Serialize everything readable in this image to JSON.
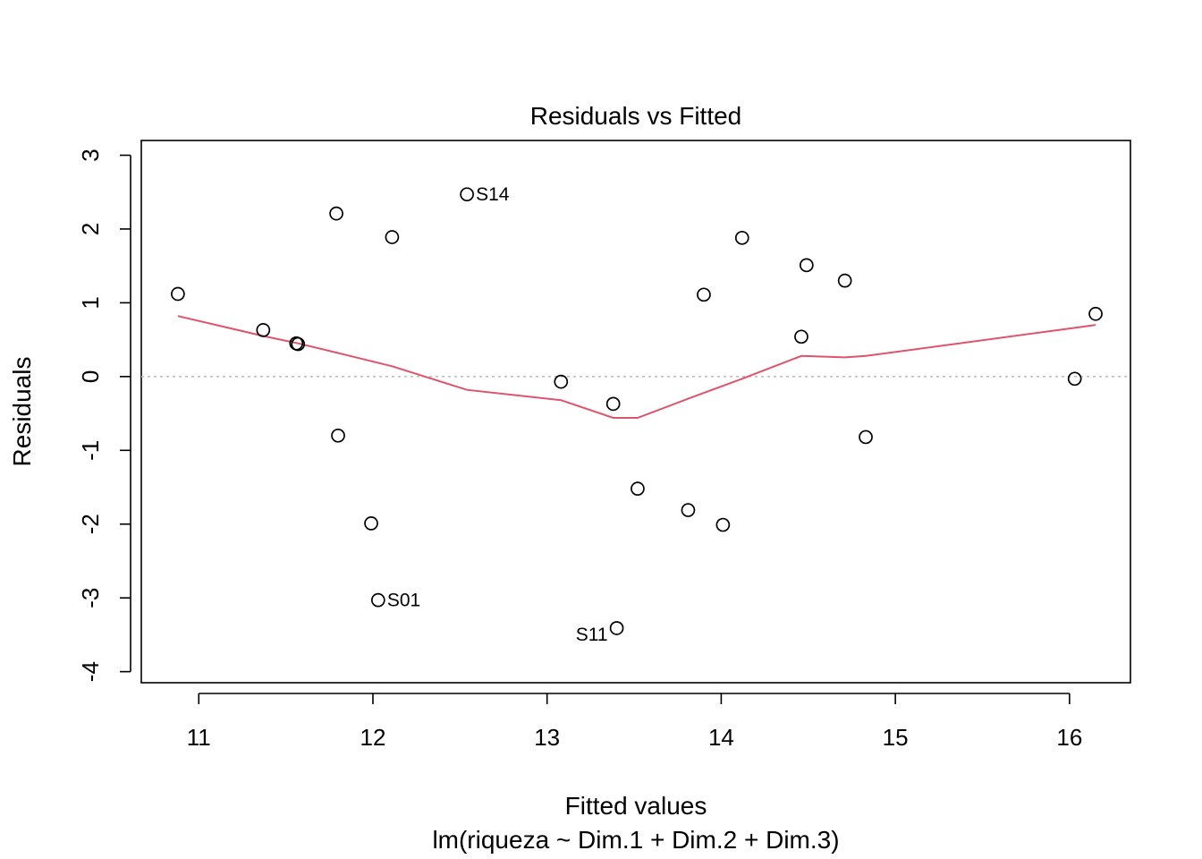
{
  "chart_data": {
    "type": "scatter",
    "title": "Residuals vs Fitted",
    "xlabel": "Fitted values",
    "subtitle": "lm(riqueza ~ Dim.1 + Dim.2 + Dim.3)",
    "ylabel": "Residuals",
    "xlim": [
      10.67,
      16.35
    ],
    "ylim": [
      -4.15,
      3.2
    ],
    "xticks": [
      11,
      12,
      13,
      14,
      15,
      16
    ],
    "yticks": [
      -4,
      -3,
      -2,
      -1,
      0,
      1,
      2,
      3
    ],
    "reference_line": {
      "y": 0,
      "color": "#bfbfbf",
      "style": "dotted"
    },
    "smooth_color": "#df536b",
    "points": [
      {
        "x": 10.88,
        "y": 1.12,
        "label": ""
      },
      {
        "x": 11.37,
        "y": 0.63,
        "label": ""
      },
      {
        "x": 11.57,
        "y": 0.44,
        "label": ""
      },
      {
        "x": 11.56,
        "y": 0.45,
        "label": ""
      },
      {
        "x": 11.79,
        "y": 2.21,
        "label": ""
      },
      {
        "x": 11.8,
        "y": -0.8,
        "label": ""
      },
      {
        "x": 11.99,
        "y": -1.99,
        "label": ""
      },
      {
        "x": 12.03,
        "y": -3.03,
        "label": "S01"
      },
      {
        "x": 12.11,
        "y": 1.89,
        "label": ""
      },
      {
        "x": 12.54,
        "y": 2.47,
        "label": "S14"
      },
      {
        "x": 13.08,
        "y": -0.07,
        "label": ""
      },
      {
        "x": 13.38,
        "y": -0.37,
        "label": ""
      },
      {
        "x": 13.4,
        "y": -3.41,
        "label": "S11"
      },
      {
        "x": 13.52,
        "y": -1.52,
        "label": ""
      },
      {
        "x": 13.81,
        "y": -1.81,
        "label": ""
      },
      {
        "x": 13.9,
        "y": 1.11,
        "label": ""
      },
      {
        "x": 14.01,
        "y": -2.01,
        "label": ""
      },
      {
        "x": 14.12,
        "y": 1.88,
        "label": ""
      },
      {
        "x": 14.46,
        "y": 0.54,
        "label": ""
      },
      {
        "x": 14.49,
        "y": 1.51,
        "label": ""
      },
      {
        "x": 14.71,
        "y": 1.3,
        "label": ""
      },
      {
        "x": 14.83,
        "y": -0.82,
        "label": ""
      },
      {
        "x": 16.03,
        "y": -0.03,
        "label": ""
      },
      {
        "x": 16.15,
        "y": 0.85,
        "label": ""
      }
    ],
    "smooth": [
      [
        10.88,
        0.82
      ],
      [
        11.37,
        0.55
      ],
      [
        11.57,
        0.45
      ],
      [
        11.8,
        0.32
      ],
      [
        12.11,
        0.14
      ],
      [
        12.54,
        -0.18
      ],
      [
        13.08,
        -0.32
      ],
      [
        13.38,
        -0.56
      ],
      [
        13.52,
        -0.56
      ],
      [
        13.81,
        -0.3
      ],
      [
        14.12,
        -0.03
      ],
      [
        14.46,
        0.28
      ],
      [
        14.71,
        0.26
      ],
      [
        14.83,
        0.28
      ],
      [
        16.03,
        0.66
      ],
      [
        16.15,
        0.7
      ]
    ]
  }
}
